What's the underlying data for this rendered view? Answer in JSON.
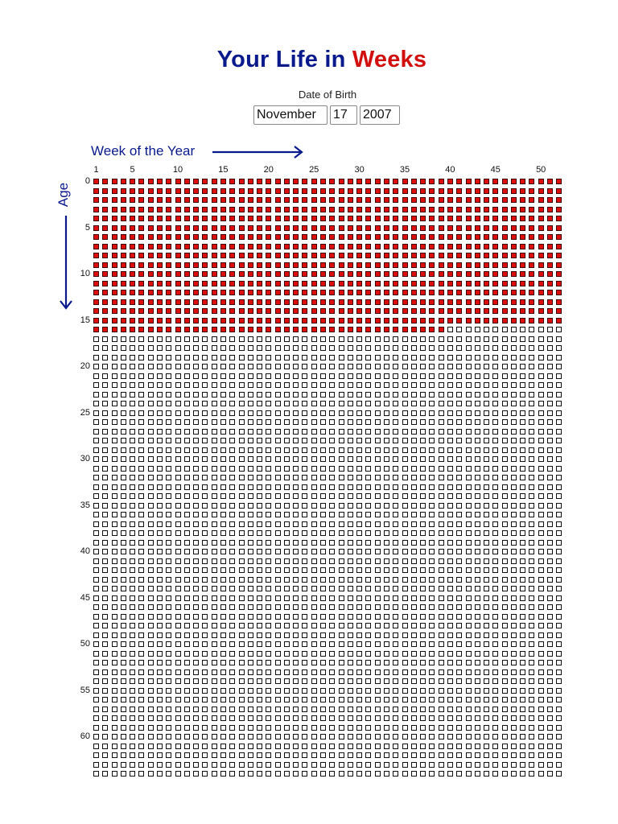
{
  "header": {
    "title_part1": "Your Life in ",
    "title_part2": "Weeks"
  },
  "dob": {
    "label": "Date of Birth",
    "month": "November",
    "day": "17",
    "year": "2007"
  },
  "axes": {
    "x_label": "Week of the Year",
    "y_label": "Age",
    "week_ticks": [
      "1",
      "5",
      "10",
      "15",
      "20",
      "25",
      "30",
      "35",
      "40",
      "45",
      "50"
    ],
    "age_ticks": [
      "0",
      "5",
      "10",
      "15",
      "20",
      "25",
      "30",
      "35",
      "40",
      "45",
      "50",
      "55",
      "60"
    ]
  },
  "grid": {
    "weeks_per_row": 52,
    "rows": 65,
    "filled_full_rows": 16,
    "filled_weeks_last_row": 39
  },
  "colors": {
    "title_blue": "#0a1a8c",
    "title_red": "#d10f0f",
    "lived_fill": "#e00d0d",
    "empty_fill": "#ffffff"
  }
}
